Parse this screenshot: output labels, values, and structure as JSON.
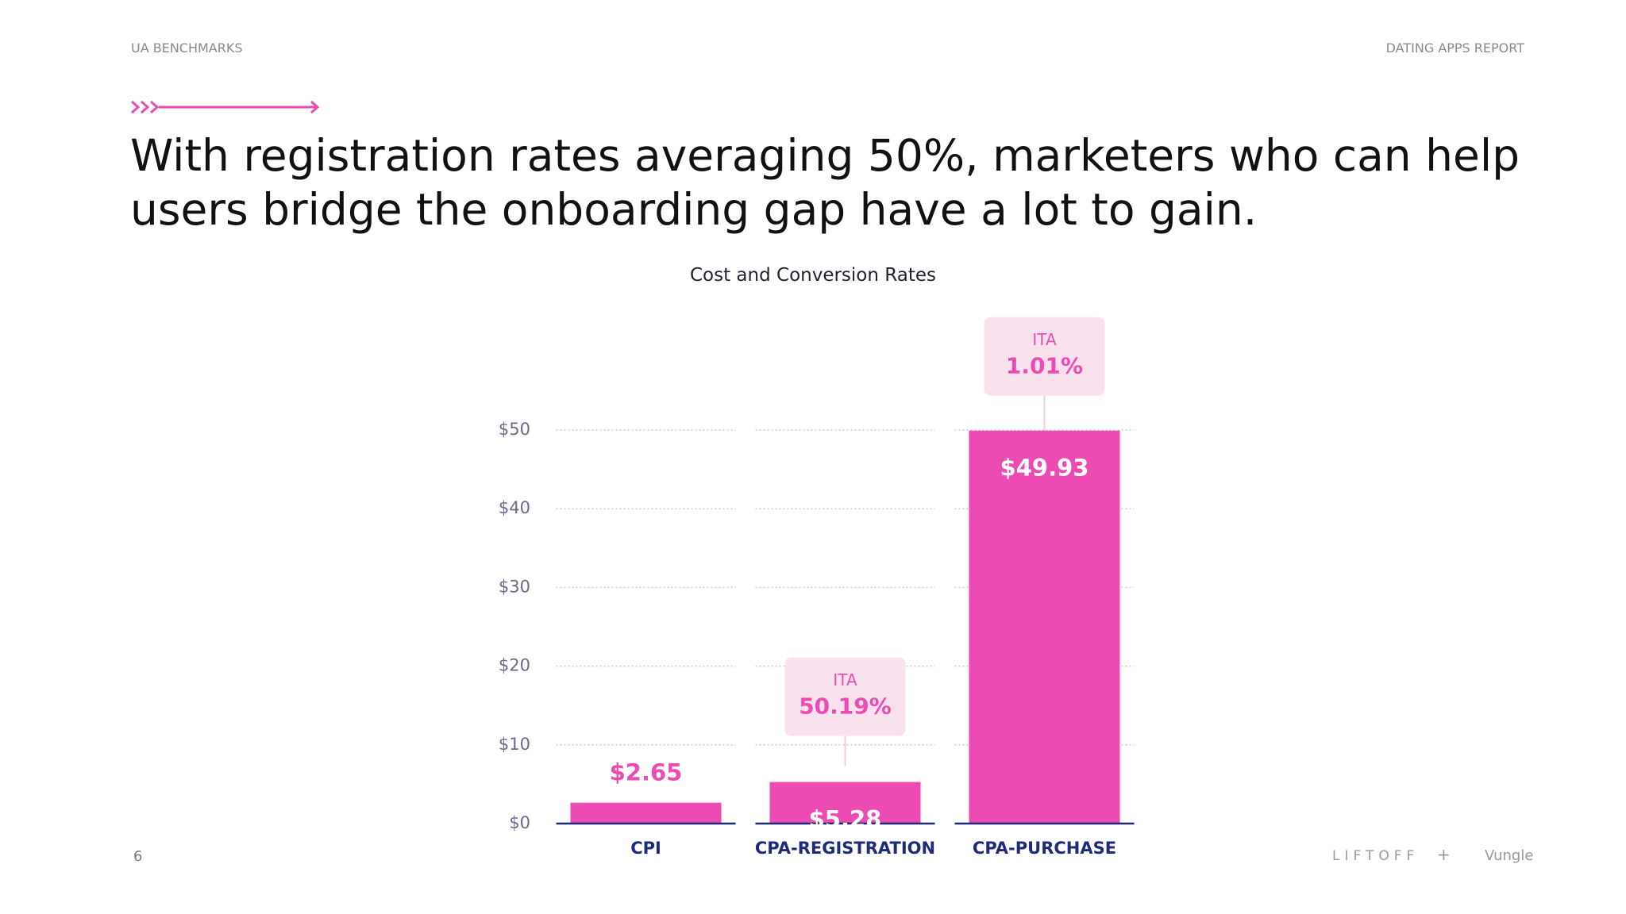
{
  "header": {
    "left": "UA BENCHMARKS",
    "right": "DATING APPS REPORT",
    "headline": [
      "With registration rates averaging 50%, marketers who can help",
      "users bridge the onboarding gap have a lot to gain."
    ]
  },
  "footer": {
    "page": "6",
    "logo_left": "LIFTOFF",
    "logo_plus": "+",
    "logo_right": "Vungle"
  },
  "chart_data": {
    "type": "bar",
    "title": "Cost and Conversion Rates",
    "categories": [
      "CPI",
      "CPA-REGISTRATION",
      "CPA-PURCHASE"
    ],
    "values": [
      2.65,
      5.28,
      49.93
    ],
    "value_labels": [
      "$2.65",
      "$5.28",
      "$49.93"
    ],
    "color": "#ec4bb3",
    "ylim": [
      0,
      50
    ],
    "yticks": [
      {
        "value": 0,
        "label": "$0"
      },
      {
        "value": 10,
        "label": "$10"
      },
      {
        "value": 20,
        "label": "$20"
      },
      {
        "value": 30,
        "label": "$30"
      },
      {
        "value": 40,
        "label": "$40"
      },
      {
        "value": 50,
        "label": "$50"
      }
    ],
    "grid": true,
    "annotations": [
      {
        "category": "CPA-REGISTRATION",
        "label": "ITA",
        "value": 50.19,
        "value_label": "50.19%"
      },
      {
        "category": "CPA-PURCHASE",
        "label": "ITA",
        "value": 1.01,
        "value_label": "1.01%"
      }
    ]
  }
}
